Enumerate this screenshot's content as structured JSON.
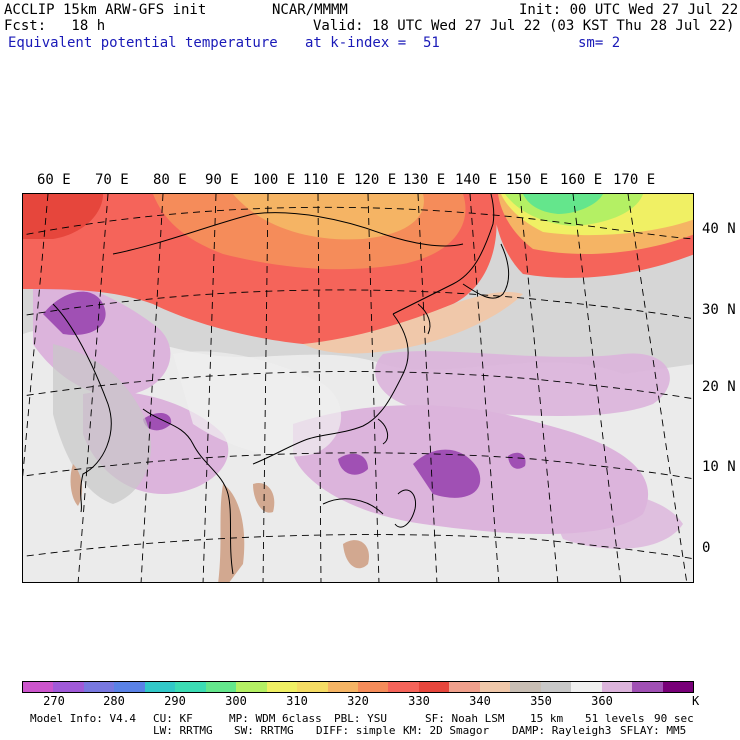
{
  "header": {
    "model_line": "ACCLIP 15km ARW-GFS init",
    "org": "NCAR/MMMM",
    "init": "Init: 00 UTC Wed 27 Jul 22",
    "fcst_label": "Fcst:   18 h",
    "valid": "Valid: 18 UTC Wed 27 Jul 22 (03 KST Thu 28 Jul 22)",
    "field": "Equivalent potential temperature",
    "level": "at k-index =  51",
    "smoothing": "sm= 2"
  },
  "map": {
    "lon_labels": [
      "60 E",
      "70 E",
      "80 E",
      "90 E",
      "100 E",
      "110 E",
      "120 E",
      "130 E",
      "140 E",
      "150 E",
      "160 E",
      "170 E"
    ],
    "lat_labels": [
      "40 N",
      "30 N",
      "20 N",
      "10 N",
      "0"
    ]
  },
  "colorbar": {
    "colors": [
      "#cc55cc",
      "#a05ad8",
      "#7878e0",
      "#5a82e6",
      "#32c8c8",
      "#3cdcb4",
      "#64e68c",
      "#b4f064",
      "#f0f064",
      "#f5dc64",
      "#f5b464",
      "#f58c5a",
      "#f5645a",
      "#e6463c",
      "#f0a08c",
      "#f0c8aa",
      "#c8beb4",
      "#c8c8c8",
      "#f0f0f0",
      "#dcb4dc",
      "#a050b4",
      "#780078"
    ],
    "ticks": [
      "270",
      "280",
      "290",
      "300",
      "310",
      "320",
      "330",
      "340",
      "350",
      "360"
    ],
    "unit": "K"
  },
  "footer": {
    "line1": [
      "Model Info: V4.4",
      "CU: KF",
      "MP: WDM 6class",
      "PBL: YSU",
      "SF: Noah LSM",
      "15 km",
      "51 levels",
      "90 sec"
    ],
    "line2": [
      "LW: RRTMG",
      "SW: RRTMG",
      "DIFF: simple",
      "KM: 2D Smagor",
      "DAMP: Rayleigh3",
      "SFLAY: MM5"
    ]
  }
}
